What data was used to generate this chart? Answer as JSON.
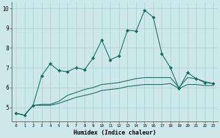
{
  "x": [
    0,
    1,
    2,
    3,
    4,
    5,
    6,
    7,
    8,
    9,
    10,
    11,
    12,
    13,
    14,
    15,
    16,
    17,
    18,
    19,
    20,
    21,
    22,
    23
  ],
  "line1": [
    4.7,
    4.6,
    5.1,
    6.6,
    7.2,
    6.85,
    6.8,
    7.0,
    6.9,
    7.5,
    8.4,
    7.4,
    7.6,
    8.9,
    8.85,
    9.9,
    9.55,
    7.7,
    7.0,
    5.95,
    6.75,
    6.45,
    6.25,
    6.2
  ],
  "line2": [
    4.7,
    4.6,
    5.1,
    5.15,
    5.15,
    5.3,
    5.6,
    5.75,
    5.9,
    6.0,
    6.15,
    6.2,
    6.25,
    6.35,
    6.45,
    6.5,
    6.5,
    6.5,
    6.5,
    6.0,
    6.5,
    6.45,
    6.3,
    6.2
  ],
  "line3": [
    4.7,
    4.6,
    5.1,
    5.1,
    5.1,
    5.2,
    5.35,
    5.5,
    5.6,
    5.7,
    5.85,
    5.9,
    5.95,
    6.05,
    6.1,
    6.15,
    6.15,
    6.15,
    6.2,
    5.95,
    6.15,
    6.15,
    6.1,
    6.1
  ],
  "line_color": "#1a6b5e",
  "bg_color": "#cde8ea",
  "grid_color": "#aacdd0",
  "xlabel": "Humidex (Indice chaleur)",
  "ylim": [
    4.3,
    10.3
  ],
  "xlim": [
    -0.5,
    23.5
  ],
  "yticks": [
    5,
    6,
    7,
    8,
    9,
    10
  ],
  "xticks": [
    0,
    1,
    2,
    3,
    4,
    5,
    6,
    7,
    8,
    9,
    10,
    11,
    12,
    13,
    14,
    15,
    16,
    17,
    18,
    19,
    20,
    21,
    22,
    23
  ],
  "xtick_labels": [
    "0",
    "1",
    "2",
    "3",
    "4",
    "5",
    "6",
    "7",
    "8",
    "9",
    "10",
    "11",
    "12",
    "13",
    "14",
    "15",
    "16",
    "17",
    "18",
    "19",
    "20",
    "21",
    "22",
    "23"
  ],
  "marker": "D",
  "markersize": 2.2,
  "linewidth": 0.8
}
